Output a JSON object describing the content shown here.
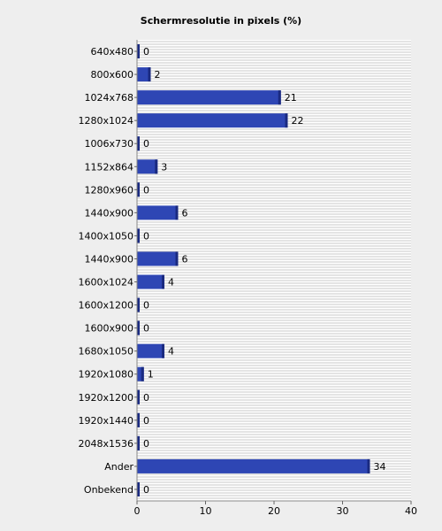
{
  "chart_data": {
    "type": "bar",
    "orientation": "horizontal",
    "title": "Schermresolutie in pixels (%)",
    "xlabel": "",
    "ylabel": "",
    "xlim": [
      0,
      40
    ],
    "xticks": [
      0,
      10,
      20,
      30,
      40
    ],
    "grid": true,
    "categories": [
      "640x480",
      "800x600",
      "1024x768",
      "1280x1024",
      "1006x730",
      "1152x864",
      "1280x960",
      "1440x900",
      "1400x1050",
      "1440x900",
      "1600x1024",
      "1600x1200",
      "1600x900",
      "1680x1050",
      "1920x1080",
      "1920x1200",
      "1920x1440",
      "2048x1536",
      "Ander",
      "Onbekend"
    ],
    "values": [
      0,
      2,
      21,
      22,
      0,
      3,
      0,
      6,
      0,
      6,
      4,
      0,
      0,
      4,
      1,
      0,
      0,
      0,
      34,
      0
    ],
    "colors": {
      "bar": "#2e46b4",
      "bar_edge": "#1a2a80",
      "background": "#eeeeee",
      "plot_background": "#ffffff",
      "grid": "#c8c8c8"
    }
  }
}
